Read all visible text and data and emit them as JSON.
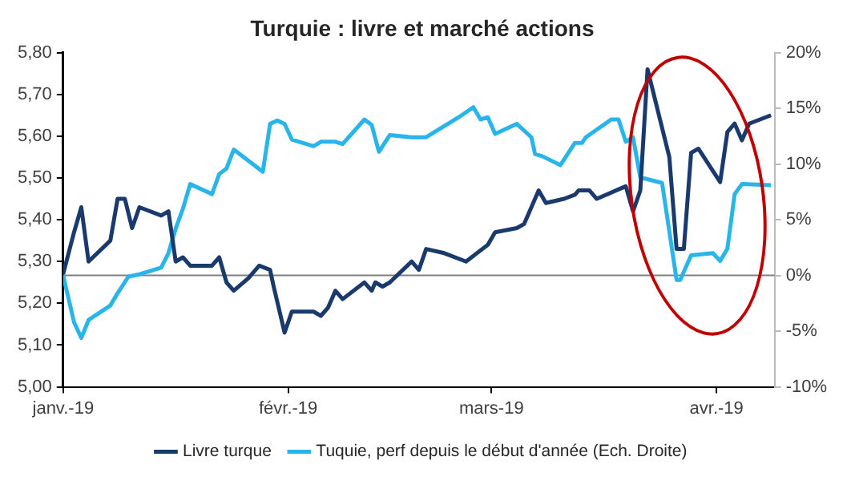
{
  "chart_data": {
    "type": "line",
    "title": "Turquie : livre et marché actions",
    "xlim": [
      "2019-01-01",
      "2019-04-09"
    ],
    "xticks": [
      {
        "value": "2019-01-01",
        "label": "janv.-19"
      },
      {
        "value": "2019-02-01",
        "label": "févr.-19"
      },
      {
        "value": "2019-03-01",
        "label": "mars-19"
      },
      {
        "value": "2019-04-01",
        "label": "avr.-19"
      }
    ],
    "ylim": [
      5.0,
      5.8
    ],
    "yticks": [
      {
        "value": 5.0,
        "label": "5,00"
      },
      {
        "value": 5.1,
        "label": "5,10"
      },
      {
        "value": 5.2,
        "label": "5,20"
      },
      {
        "value": 5.3,
        "label": "5,30"
      },
      {
        "value": 5.4,
        "label": "5,40"
      },
      {
        "value": 5.5,
        "label": "5,50"
      },
      {
        "value": 5.6,
        "label": "5,60"
      },
      {
        "value": 5.7,
        "label": "5,70"
      },
      {
        "value": 5.8,
        "label": "5,80"
      }
    ],
    "y2lim": [
      -10,
      20
    ],
    "y2ticks": [
      {
        "value": -10,
        "label": "-10%"
      },
      {
        "value": -5,
        "label": "-5%"
      },
      {
        "value": 0,
        "label": "0%"
      },
      {
        "value": 5,
        "label": "5%"
      },
      {
        "value": 10,
        "label": "10%"
      },
      {
        "value": 15,
        "label": "15%"
      },
      {
        "value": 20,
        "label": "20%"
      }
    ],
    "ref_lines": [
      {
        "axis": "y2",
        "value": 0,
        "color": "#808080"
      }
    ],
    "grid": false,
    "legend": "bottom",
    "marker": "none",
    "line_style": "solid",
    "series": [
      {
        "name": "Livre turque",
        "color": "#1a3a6e",
        "x": [
          "2019-01-01",
          "2019-01-02T12:00",
          "2019-01-03T12:00",
          "2019-01-04T12:00",
          "2019-01-07T12:00",
          "2019-01-08T12:00",
          "2019-01-09T12:00",
          "2019-01-10T12:00",
          "2019-01-11T12:00",
          "2019-01-14T12:00",
          "2019-01-15T12:00",
          "2019-01-16T12:00",
          "2019-01-17T12:00",
          "2019-01-18T12:00",
          "2019-01-21T12:00",
          "2019-01-22T12:00",
          "2019-01-23T12:00",
          "2019-01-24T12:00",
          "2019-01-26T12:00",
          "2019-01-28",
          "2019-01-29T12:00",
          "2019-01-30",
          "2019-01-31T12:00",
          "2019-02-01T12:00",
          "2019-02-04T12:00",
          "2019-02-05T12:00",
          "2019-02-06T12:00",
          "2019-02-07T12:00",
          "2019-02-08T12:00",
          "2019-02-11T12:00",
          "2019-02-12T12:00",
          "2019-02-13",
          "2019-02-14",
          "2019-02-15",
          "2019-02-18",
          "2019-02-19",
          "2019-02-20",
          "2019-02-22T12:00",
          "2019-02-25T12:00",
          "2019-02-27",
          "2019-02-28T12:00",
          "2019-03-01T12:00",
          "2019-03-04T12:00",
          "2019-03-05T12:00",
          "2019-03-06T12:00",
          "2019-03-07T12:00",
          "2019-03-08T12:00",
          "2019-03-11",
          "2019-03-12T12:00",
          "2019-03-13",
          "2019-03-14T12:00",
          "2019-03-15T12:00",
          "2019-03-19T12:00",
          "2019-03-20T12:00",
          "2019-03-21T12:00",
          "2019-03-22T12:00",
          "2019-03-25T12:00",
          "2019-03-26T12:00",
          "2019-03-27T12:00",
          "2019-03-28T12:00",
          "2019-03-29T12:00",
          "2019-04-01T12:00",
          "2019-04-02T12:00",
          "2019-04-03T12:00",
          "2019-04-04T12:00",
          "2019-04-05T12:00",
          "2019-04-08T12:00"
        ],
        "values": [
          5.27,
          5.37,
          5.43,
          5.3,
          5.35,
          5.45,
          5.45,
          5.38,
          5.43,
          5.41,
          5.42,
          5.3,
          5.31,
          5.29,
          5.29,
          5.31,
          5.25,
          5.23,
          5.26,
          5.29,
          5.28,
          5.24,
          5.13,
          5.18,
          5.18,
          5.17,
          5.19,
          5.23,
          5.21,
          5.25,
          5.23,
          5.25,
          5.24,
          5.25,
          5.3,
          5.28,
          5.33,
          5.32,
          5.3,
          5.32,
          5.34,
          5.37,
          5.38,
          5.39,
          5.43,
          5.47,
          5.44,
          5.45,
          5.46,
          5.47,
          5.47,
          5.45,
          5.48,
          5.42,
          5.47,
          5.76,
          5.55,
          5.33,
          5.33,
          5.56,
          5.57,
          5.49,
          5.61,
          5.63,
          5.59,
          5.63,
          5.65
        ]
      },
      {
        "name": "Tuquie, perf depuis le début d'année (Ech. Droite)",
        "color": "#29b5ea",
        "axis": "y2",
        "x": [
          "2019-01-01",
          "2019-01-02T12:00",
          "2019-01-03T12:00",
          "2019-01-04T12:00",
          "2019-01-07T12:00",
          "2019-01-08T12:00",
          "2019-01-10",
          "2019-01-11T12:00",
          "2019-01-14T12:00",
          "2019-01-15T12:00",
          "2019-01-16T12:00",
          "2019-01-17T12:00",
          "2019-01-18T12:00",
          "2019-01-21T12:00",
          "2019-01-22T12:00",
          "2019-01-23T12:00",
          "2019-01-24T12:00",
          "2019-01-28T12:00",
          "2019-01-29T12:00",
          "2019-01-30T12:00",
          "2019-01-31T12:00",
          "2019-02-01T12:00",
          "2019-02-04T12:00",
          "2019-02-05T12:00",
          "2019-02-07T12:00",
          "2019-02-08T12:00",
          "2019-02-11T12:00",
          "2019-02-12T12:00",
          "2019-02-13T12:00",
          "2019-02-15",
          "2019-02-18",
          "2019-02-20",
          "2019-02-24T12:00",
          "2019-02-26T12:00",
          "2019-02-27T12:00",
          "2019-02-28T12:00",
          "2019-03-01T12:00",
          "2019-03-04T12:00",
          "2019-03-06T12:00",
          "2019-03-07",
          "2019-03-08",
          "2019-03-10T12:00",
          "2019-03-12T12:00",
          "2019-03-13T12:00",
          "2019-03-14",
          "2019-03-17T12:00",
          "2019-03-18T12:00",
          "2019-03-19T12:00",
          "2019-03-20T12:00",
          "2019-03-21T12:00",
          "2019-03-24T12:00",
          "2019-03-26T12:00",
          "2019-03-27",
          "2019-03-28T12:00",
          "2019-03-31T12:00",
          "2019-04-01T12:00",
          "2019-04-02T12:00",
          "2019-04-03T12:00",
          "2019-04-04T12:00",
          "2019-04-08T12:00"
        ],
        "values": [
          0,
          -4.2,
          -5.6,
          -4.0,
          -2.7,
          -1.6,
          -0.1,
          0.1,
          0.7,
          2.0,
          4.2,
          6.0,
          8.2,
          7.3,
          9.1,
          9.6,
          11.3,
          9.3,
          13.6,
          13.9,
          13.6,
          12.2,
          11.6,
          12.0,
          12.0,
          11.8,
          14.0,
          13.5,
          11.1,
          12.6,
          12.4,
          12.4,
          14.2,
          15.1,
          14.0,
          14.2,
          12.7,
          13.6,
          12.4,
          10.9,
          10.7,
          9.9,
          11.9,
          11.9,
          12.4,
          14.0,
          14.0,
          12.0,
          12.4,
          8.8,
          8.3,
          -0.4,
          -0.4,
          1.8,
          2.0,
          1.3,
          2.4,
          7.3,
          8.2,
          8.1
        ]
      }
    ]
  }
}
